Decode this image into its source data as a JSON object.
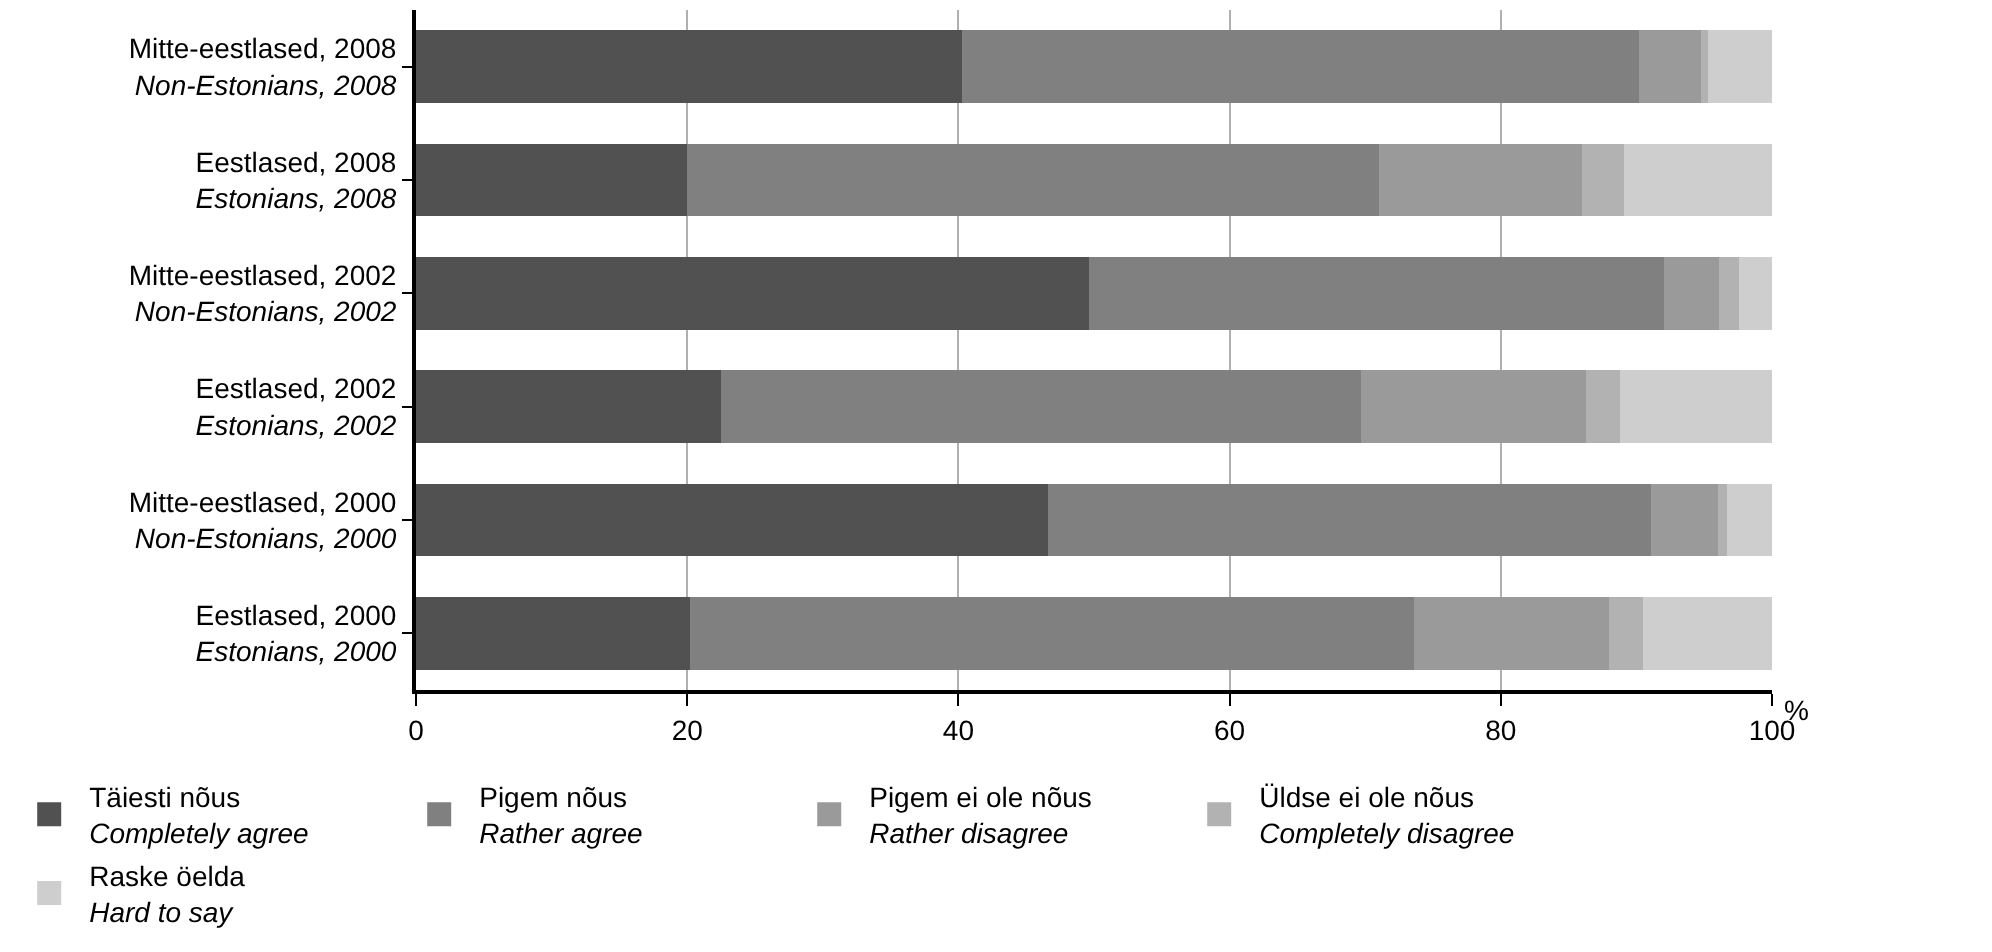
{
  "chart_data": {
    "type": "bar",
    "orientation": "horizontal",
    "stacked": true,
    "categories": [
      "Mitte-eestlased, 2008\nNon-Estonians, 2008",
      "Eestlased, 2008\nEstonians, 2008",
      "Mitte-eestlased, 2002\nNon-Estonians, 2002",
      "Eestlased, 2002\nEstonians, 2002",
      "Mitte-eestlased, 2000\nNon-Estonians, 2000",
      "Eestlased, 2000\nEstonians, 2000"
    ],
    "series": [
      {
        "name": "Täiesti nõus\nCompletely agree",
        "color": "#515151",
        "values": [
          40.3,
          20.0,
          49.6,
          22.5,
          46.6,
          20.2
        ]
      },
      {
        "name": "Pigem nõus\nRather agree",
        "color": "#808080",
        "values": [
          49.9,
          51.0,
          42.4,
          47.2,
          44.5,
          53.4
        ]
      },
      {
        "name": "Pigem ei ole nõus\nRather disagree",
        "color": "#9a9a9a",
        "values": [
          4.6,
          15.0,
          4.1,
          16.6,
          4.9,
          14.4
        ]
      },
      {
        "name": "Üldse ei ole nõus\nCompletely disagree",
        "color": "#b2b2b2",
        "values": [
          0.5,
          3.1,
          1.5,
          2.5,
          0.7,
          2.5
        ]
      },
      {
        "name": "Raske öelda\nHard to say",
        "color": "#cecece",
        "values": [
          4.7,
          10.9,
          2.4,
          11.2,
          3.3,
          9.5
        ]
      }
    ],
    "xlabel": "%",
    "xlim": [
      0,
      100
    ],
    "xticks": [
      0,
      20,
      40,
      60,
      80,
      100
    ],
    "grid": "x",
    "legend": "bottom"
  }
}
